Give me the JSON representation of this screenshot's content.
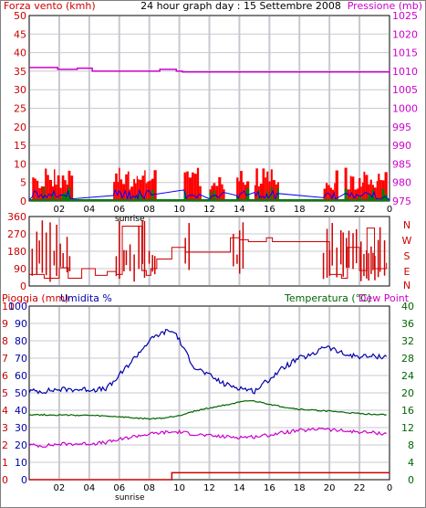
{
  "colors": {
    "background": "#ffffff",
    "frame": "#808080",
    "plot_border": "#000000",
    "grid": "#c8c8d0",
    "wind_fill": "#ff0000",
    "gust_fill": "#008000",
    "wind_line": "#0000ff",
    "pressure": "#cc00cc",
    "direction": "#cc0000",
    "humidity": "#0000aa",
    "temperature": "#006600",
    "dewpoint": "#cc00cc",
    "rain": "#cc0000"
  },
  "chart_data": [
    {
      "type": "area",
      "title": "24 hour graph day : 15 Settembre 2008",
      "left_label": "Forza vento (kmh)",
      "right_label": "Pressione (mb)",
      "left_axis": {
        "min": 0,
        "max": 50,
        "ticks": [
          0,
          5,
          10,
          15,
          20,
          25,
          30,
          35,
          40,
          45,
          50
        ]
      },
      "right_axis": {
        "min": 975,
        "max": 1025,
        "ticks": [
          975,
          980,
          985,
          990,
          995,
          1000,
          1005,
          1010,
          1015,
          1020,
          1025
        ]
      },
      "x_axis": {
        "hours_min": 0,
        "hours_max": 24,
        "tick_labels": [
          "02",
          "04",
          "06",
          "08",
          "10",
          "12",
          "14",
          "16",
          "18",
          "20",
          "22",
          "0"
        ],
        "tick_hours": [
          2,
          4,
          6,
          8,
          10,
          12,
          14,
          16,
          18,
          20,
          22,
          24
        ]
      },
      "series": [
        {
          "name": "Pressione (mb)",
          "style": "step",
          "x": [
            0,
            1.7,
            1.9,
            3.2,
            4.2,
            8.4,
            8.7,
            9.8,
            10.2,
            14.5,
            24
          ],
          "y": [
            1011,
            1011,
            1010.5,
            1010.8,
            1010,
            1010,
            1010.5,
            1010,
            1009.8,
            1009.8,
            1010.5
          ]
        }
      ],
      "wind_activity_hours": [
        [
          0.2,
          2.8
        ],
        [
          5.6,
          8.4
        ],
        [
          10.3,
          11.4
        ],
        [
          12.0,
          13.0
        ],
        [
          13.8,
          14.6
        ],
        [
          15.0,
          16.6
        ],
        [
          19.6,
          20.5
        ],
        [
          21.0,
          23.7
        ]
      ]
    },
    {
      "type": "line",
      "left_axis": {
        "min": 0,
        "max": 360,
        "ticks": [
          0,
          90,
          180,
          270,
          360
        ]
      },
      "right_labels": [
        "N",
        "W",
        "S",
        "E",
        "N"
      ],
      "x_axis": {
        "hours_min": 0,
        "hours_max": 24
      },
      "series": [
        {
          "name": "direction",
          "x": [
            0,
            1,
            2,
            2.6,
            3.5,
            4.4,
            5.2,
            5.8,
            6.2,
            7.5,
            7.8,
            8.1,
            8.5,
            9.5,
            10.4,
            12.0,
            13.4,
            14.0,
            14.6,
            15.8,
            16.2,
            17.0,
            18.0,
            19.5,
            20.0,
            20.8,
            21.2,
            22.0,
            22.5,
            23.0,
            23.8
          ],
          "y": [
            60,
            40,
            95,
            40,
            90,
            55,
            75,
            60,
            310,
            80,
            55,
            90,
            140,
            200,
            175,
            175,
            250,
            240,
            230,
            250,
            230,
            230,
            230,
            230,
            60,
            40,
            200,
            80,
            300,
            90,
            120
          ]
        }
      ],
      "spike_hours": [
        [
          0.2,
          2.8
        ],
        [
          5.8,
          8.4
        ],
        [
          10.4,
          10.8
        ],
        [
          13.6,
          14.4
        ],
        [
          19.6,
          23.8
        ]
      ]
    },
    {
      "type": "line",
      "left_label_1": "Pioggia (mm)",
      "left_label_2": "Umidita %",
      "right_label_1": "Temperatura (°C)",
      "right_label_2": "Dew Point",
      "rain_axis": {
        "min": 0,
        "max": 10,
        "ticks": [
          0,
          1,
          2,
          3,
          4,
          5,
          6,
          7,
          8,
          9,
          10
        ]
      },
      "humidity_axis": {
        "min": 0,
        "max": 100,
        "ticks": [
          0,
          10,
          20,
          30,
          40,
          50,
          60,
          70,
          80,
          90,
          100
        ]
      },
      "right_axis": {
        "min": 0,
        "max": 40,
        "ticks": [
          0,
          4,
          8,
          12,
          16,
          20,
          24,
          28,
          32,
          36,
          40
        ]
      },
      "x_axis": {
        "hours_min": 0,
        "hours_max": 24,
        "tick_labels": [
          "02",
          "04",
          "06",
          "08",
          "10",
          "12",
          "14",
          "16",
          "18",
          "20",
          "22",
          "0"
        ],
        "tick_hours": [
          2,
          4,
          6,
          8,
          10,
          12,
          14,
          16,
          18,
          20,
          22,
          24
        ]
      },
      "sunrise_label": "sunrise",
      "sunrise_hours": [
        5.6,
        7.8
      ],
      "series": [
        {
          "name": "Umidita %",
          "x": [
            0,
            1,
            2,
            3,
            4,
            5,
            5.5,
            6,
            7,
            8,
            8.5,
            9.3,
            9.8,
            10.3,
            11,
            12,
            13,
            14,
            15,
            16,
            17,
            18,
            19,
            19.5,
            20,
            21,
            22,
            23,
            23.8
          ],
          "y": [
            51,
            51,
            52,
            52,
            52,
            52,
            55,
            60,
            70,
            80,
            83,
            86,
            84,
            75,
            65,
            60,
            55,
            53,
            51,
            58,
            65,
            70,
            72,
            77,
            76,
            72,
            71,
            71,
            71
          ]
        },
        {
          "name": "Temperatura (°C)",
          "x": [
            0,
            2,
            4,
            6,
            7,
            8,
            9,
            10,
            11,
            12,
            13,
            14,
            14.7,
            15.5,
            16.5,
            18,
            20,
            22,
            23.8
          ],
          "y": [
            15,
            14.9,
            14.8,
            14.5,
            14.2,
            14,
            14.2,
            14.8,
            15.8,
            16.5,
            17.2,
            17.8,
            18.2,
            17.8,
            17,
            16.2,
            15.8,
            15.2,
            15
          ]
        },
        {
          "name": "Dew Point",
          "x": [
            0,
            1,
            2,
            4,
            5,
            6,
            7,
            8,
            9,
            10,
            11,
            12,
            13,
            14,
            15,
            16,
            17,
            18,
            19,
            19.5,
            20,
            21,
            22,
            23,
            23.8
          ],
          "y": [
            8,
            7.8,
            8.2,
            8.3,
            8.5,
            9.2,
            10,
            10.5,
            10.9,
            11,
            10.5,
            10.1,
            9.9,
            9.8,
            9.9,
            10.3,
            10.9,
            11.3,
            11.5,
            12,
            11.5,
            11.2,
            11,
            10.8,
            10.6
          ]
        },
        {
          "name": "Pioggia (mm)",
          "style": "step",
          "x": [
            0,
            9.5,
            9.5,
            24
          ],
          "y": [
            0,
            0,
            0.4,
            0.4
          ]
        }
      ]
    }
  ]
}
